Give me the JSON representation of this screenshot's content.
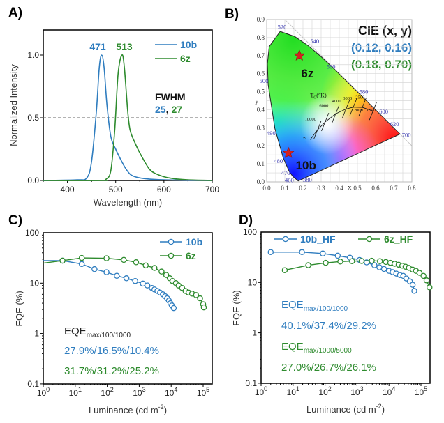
{
  "colors": {
    "blue": "#2f7dbf",
    "green": "#2e8b2e"
  },
  "panels": {
    "a": "A)",
    "b": "B)",
    "c": "C)",
    "d": "D)"
  },
  "chart_data": [
    {
      "type": "line",
      "xlabel": "Wavelength (nm)",
      "ylabel": "Normalized Intensity",
      "xlim": [
        350,
        700
      ],
      "ylim": [
        0,
        1.2
      ],
      "xticks": [
        400,
        500,
        600,
        700
      ],
      "yticks": [
        "0.0",
        "0.5",
        "1.0"
      ],
      "reference_line": {
        "y": 0.5,
        "style": "dashed"
      },
      "legend": "top-right",
      "peak_labels": [
        "471",
        "513"
      ],
      "fwhm_title": "FWHM",
      "fwhm_values": [
        "25",
        "27"
      ],
      "fwhm_sep": ",",
      "series": [
        {
          "name": "10b",
          "color": "#2f7dbf",
          "x": [
            350,
            420,
            440,
            450,
            460,
            466,
            471,
            476,
            482,
            490,
            500,
            510,
            520,
            530,
            540,
            560,
            600,
            700
          ],
          "y": [
            0,
            0.005,
            0.02,
            0.15,
            0.55,
            0.9,
            1.0,
            0.9,
            0.6,
            0.35,
            0.25,
            0.17,
            0.1,
            0.05,
            0.03,
            0.015,
            0.005,
            0
          ]
        },
        {
          "name": "6z",
          "color": "#2e8b2e",
          "x": [
            350,
            470,
            480,
            490,
            498,
            505,
            513,
            518,
            525,
            530,
            540,
            550,
            560,
            570,
            580,
            600,
            620,
            650,
            700
          ],
          "y": [
            0,
            0,
            0.01,
            0.08,
            0.4,
            0.85,
            1.0,
            0.9,
            0.55,
            0.4,
            0.3,
            0.22,
            0.15,
            0.09,
            0.06,
            0.03,
            0.015,
            0.005,
            0
          ]
        }
      ]
    },
    {
      "type": "scatter",
      "xlabel": "x",
      "ylabel": "y",
      "xlim": [
        0,
        0.8
      ],
      "ylim": [
        0,
        0.9
      ],
      "xticks": [
        "0.0",
        "0.1",
        "0.2",
        "0.3",
        "0.4",
        "0.5",
        "0.6",
        "0.7",
        "0.8"
      ],
      "yticks": [
        "0.0",
        "0.1",
        "0.2",
        "0.3",
        "0.4",
        "0.5",
        "0.6",
        "0.7",
        "0.8",
        "0.9"
      ],
      "grid": true,
      "title": "CIE (x, y)",
      "wavelength_labels": [
        "380",
        "460",
        "470",
        "480",
        "490",
        "500",
        "520",
        "540",
        "560",
        "580",
        "600",
        "620",
        "700"
      ],
      "planckian_title": "T",
      "planckian_sub": "C",
      "planckian_unit": "(°K)",
      "planckian_labels": [
        "∞",
        "10000",
        "6000",
        "4000",
        "3000",
        "2500",
        "2000",
        "1500"
      ],
      "points": [
        {
          "name": "10b",
          "x": 0.12,
          "y": 0.16,
          "label": "(0.12, 0.16)",
          "color": "#2f7dbf",
          "marker": "red-star"
        },
        {
          "name": "6z",
          "x": 0.18,
          "y": 0.7,
          "label": "(0.18, 0.70)",
          "color": "#2e8b2e",
          "marker": "red-star"
        }
      ]
    },
    {
      "type": "line",
      "xlabel": "Luminance (cd m",
      "xlabel_sup": "-2",
      "xlabel_end": ")",
      "ylabel": "EQE (%)",
      "xscale": "log",
      "yscale": "log",
      "xlim": [
        1,
        190000
      ],
      "ylim": [
        0.1,
        100
      ],
      "yticks": [
        "0.1",
        "1",
        "10",
        "100"
      ],
      "xtick_exponents": [
        "0",
        "1",
        "2",
        "3",
        "4",
        "5"
      ],
      "legend": "top-right",
      "annotation": {
        "eqe": "EQE",
        "sub1": "max/100/1000",
        "values1": "27.9%/16.5%/10.4%",
        "values2": "31.7%/31.2%/25.2%"
      },
      "series": [
        {
          "name": "10b",
          "color": "#2f7dbf",
          "x": [
            4,
            16,
            40,
            95,
            200,
            400,
            750,
            1300,
            1800,
            2500,
            3000,
            3700,
            4500,
            5500,
            6500,
            7500,
            8500,
            9500,
            10500,
            12000
          ],
          "y": [
            28,
            24,
            19,
            16.5,
            14,
            12.5,
            11,
            9.8,
            9,
            8,
            7.5,
            7,
            6.5,
            6,
            5.5,
            5,
            4.5,
            4,
            3.6,
            3.2
          ]
        },
        {
          "name": "6z",
          "color": "#2e8b2e",
          "x": [
            4,
            16,
            95,
            330,
            800,
            1600,
            3000,
            5000,
            7000,
            9000,
            11000,
            14000,
            17000,
            22000,
            28000,
            35000,
            45000,
            60000,
            80000,
            100000,
            105000
          ],
          "y": [
            28,
            31.7,
            31.2,
            29,
            26,
            22.5,
            20,
            17,
            14.5,
            12.5,
            11,
            10,
            9,
            8,
            7,
            6.5,
            6.2,
            5.8,
            5,
            3.8,
            3.3
          ]
        }
      ]
    },
    {
      "type": "line",
      "xlabel": "Luminance (cd m",
      "xlabel_sup": "-2",
      "xlabel_end": ")",
      "ylabel": "EQE (%)",
      "xscale": "log",
      "yscale": "log",
      "xlim": [
        1,
        190000
      ],
      "ylim": [
        0.1,
        100
      ],
      "yticks": [
        "0.1",
        "1",
        "10",
        "100"
      ],
      "xtick_exponents": [
        "0",
        "1",
        "2",
        "3",
        "4",
        "5"
      ],
      "legend": "top",
      "annotation": {
        "eqe": "EQE",
        "sub1": "max/100/1000",
        "values1": "40.1%/37.4%/29.2%",
        "sub2": "max/1000/5000",
        "values2": "27.0%/26.7%/26.1%"
      },
      "series": [
        {
          "name": "10b_HF",
          "color": "#2f7dbf",
          "x": [
            2,
            19,
            85,
            250,
            600,
            1200,
            2000,
            3500,
            5000,
            7000,
            10000,
            13000,
            17000,
            22000,
            28000,
            35000,
            45000,
            55000,
            62000
          ],
          "y": [
            40,
            40,
            37.5,
            34,
            31,
            28,
            25,
            22,
            20,
            18.5,
            17,
            16,
            15,
            14,
            13.5,
            12,
            10.5,
            9,
            6.8
          ]
        },
        {
          "name": "6z_HF",
          "color": "#2e8b2e",
          "x": [
            5.5,
            30,
            105,
            300,
            700,
            1400,
            2900,
            5200,
            8000,
            11000,
            15000,
            20000,
            26000,
            33000,
            42000,
            55000,
            70000,
            90000,
            120000,
            150000,
            185000
          ],
          "y": [
            17.5,
            22,
            24.5,
            26,
            26.5,
            26.7,
            27,
            26.5,
            25.5,
            24.5,
            23.5,
            22.5,
            21.5,
            20.5,
            19.5,
            18,
            17,
            15.5,
            13.5,
            11,
            8
          ]
        }
      ]
    }
  ]
}
